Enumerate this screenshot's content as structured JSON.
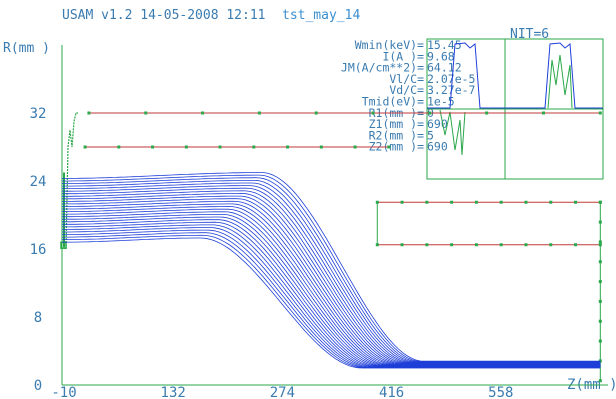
{
  "header": {
    "program": "USAM v1.2 14-05-2008 12:11",
    "file": "tst_may_14",
    "nit": "NIT=6"
  },
  "params": [
    {
      "label": "Wmin(keV)=",
      "value": "15.45",
      "color": "#3a7bb0"
    },
    {
      "label": "I(A    )=",
      "value": "9.68",
      "color": "#3a7bb0"
    },
    {
      "label": "JM(A/cm**2)=",
      "value": "64.12",
      "color": "#3a7bb0"
    },
    {
      "label": "Vl/C=",
      "value": "2.07e-5",
      "color": "#2aa84a"
    },
    {
      "label": "Vd/C=",
      "value": "3.27e-7",
      "color": "#c23a3a"
    },
    {
      "label": "Tmid(eV)=",
      "value": "1e-5",
      "color": "#3a7bb0"
    },
    {
      "label": "R1(mm  )=",
      "value": "0",
      "color": "#3a7bb0"
    },
    {
      "label": "Z1(mm  )=",
      "value": "690",
      "color": "#3a7bb0"
    },
    {
      "label": "R2(mm  )=",
      "value": "5",
      "color": "#3a7bb0"
    },
    {
      "label": "Z2(mm  )=",
      "value": "690",
      "color": "#3a7bb0"
    }
  ],
  "colors": {
    "axis": "#2aa84a",
    "text": "#3a7bb0",
    "trajectory": "#1f3fd8",
    "electrode_red": "#c23a3a",
    "electrode_green": "#2aa84a"
  },
  "chart_data": {
    "type": "line",
    "title": "",
    "xlabel": "Z(mm )",
    "ylabel": "R(mm )",
    "xlim": [
      -10,
      700
    ],
    "ylim": [
      0,
      40
    ],
    "xticks": [
      -10,
      132,
      274,
      416,
      558
    ],
    "xtick_labels": [
      "-10",
      "132",
      "274",
      "416",
      "558"
    ],
    "yticks": [
      0,
      8,
      16,
      24,
      32
    ],
    "ytick_labels": [
      "0",
      "8",
      "16",
      "24",
      "32"
    ],
    "grid": false,
    "trajectory_bundle": {
      "count": 26,
      "z_start": -10,
      "z_end": 690,
      "r_start_top": 24.3,
      "r_start_bottom": 16.8,
      "r_peak_top": 25.0,
      "r_peak_bottom": 17.3,
      "z_peak": 210,
      "r_end_top": 2.8,
      "r_end_bottom": 2.0
    },
    "electrodes": [
      {
        "name": "anode-upper",
        "color": "#c23a3a",
        "z": [
          25,
          690
        ],
        "r": [
          32,
          32
        ]
      },
      {
        "name": "anode-lower",
        "color": "#c23a3a",
        "z": [
          20,
          415
        ],
        "r": [
          28,
          28
        ]
      },
      {
        "name": "collector-top",
        "color": "#c23a3a",
        "z": [
          400,
          690
        ],
        "r": [
          21.5,
          21.5
        ]
      },
      {
        "name": "collector-bottom",
        "color": "#c23a3a",
        "z": [
          400,
          690
        ],
        "r": [
          16.5,
          16.5
        ]
      }
    ]
  }
}
